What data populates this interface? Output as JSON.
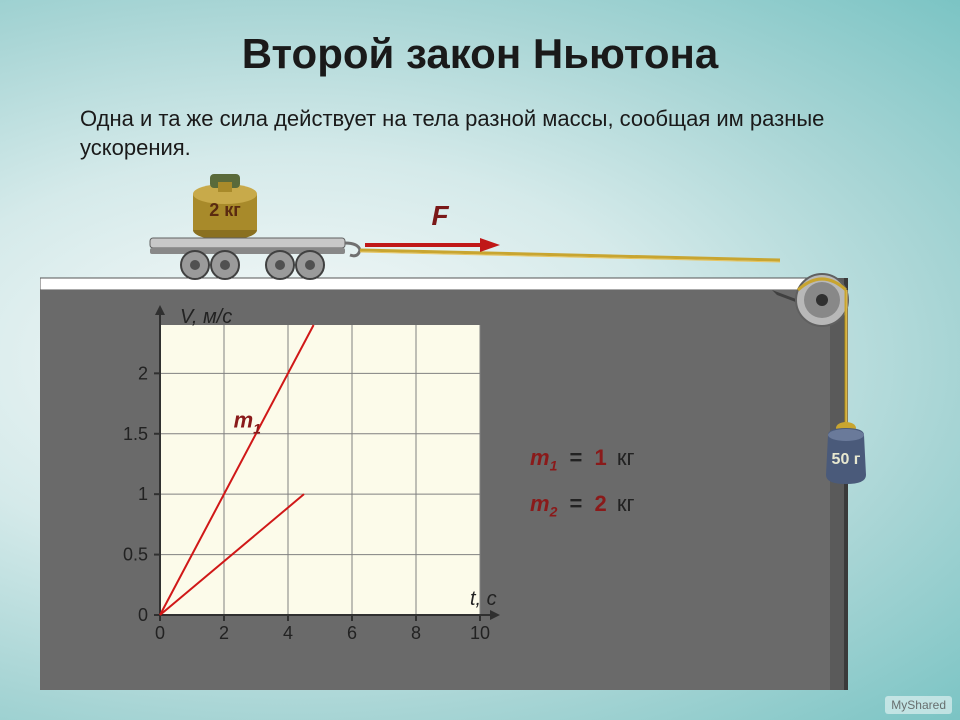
{
  "title": "Второй закон Ньютона",
  "subtitle": "Одна и та же сила действует на тела разной массы, сообщая им разные ускорения.",
  "cart": {
    "weight_label": "2 кг",
    "force_label": "F",
    "weight_body_color": "#a88a2a",
    "weight_cap_color": "#5a6a3a",
    "cart_color": "#a8a8a8",
    "cart_edge": "#606060",
    "rope_color": "#c8a530",
    "arrow_color": "#c01818",
    "label_color": "#7a1818",
    "table_top_color": "#ffffff",
    "table_body_color": "#6a6a6a"
  },
  "pulley": {
    "wheel_outer": "#b8b8b8",
    "wheel_inner": "#888888",
    "axle": "#404040",
    "bracket": "#404040",
    "rope_color": "#c8a530",
    "weight_color": "#4a5a7a",
    "weight_hi": "#6a7a9a",
    "weight_label": "50 г",
    "weight_label_color": "#e8e8d0"
  },
  "graph": {
    "type": "line",
    "y_label": "V, м/с",
    "x_label": "t, с",
    "xlim": [
      0,
      10
    ],
    "ylim": [
      0,
      2.4
    ],
    "xticks": [
      0,
      2,
      4,
      6,
      8,
      10
    ],
    "yticks": [
      0,
      0.5,
      1,
      1.5,
      2
    ],
    "grid_color": "#808080",
    "axis_color": "#303030",
    "bg_color": "#fcfbea",
    "line_color": "#d01818",
    "line_width": 2,
    "tick_font": 18,
    "label_font": 20,
    "m1_label": "m",
    "m1_sub": "1",
    "series": [
      {
        "name": "m1",
        "points": [
          [
            0,
            0
          ],
          [
            4.8,
            2.4
          ]
        ]
      },
      {
        "name": "m2",
        "points": [
          [
            0,
            0
          ],
          [
            4.5,
            1.0
          ]
        ]
      }
    ]
  },
  "masses": {
    "m1": {
      "value": "1",
      "unit": "кг"
    },
    "m2": {
      "value": "2",
      "unit": "кг"
    }
  },
  "watermark": "MyShared"
}
